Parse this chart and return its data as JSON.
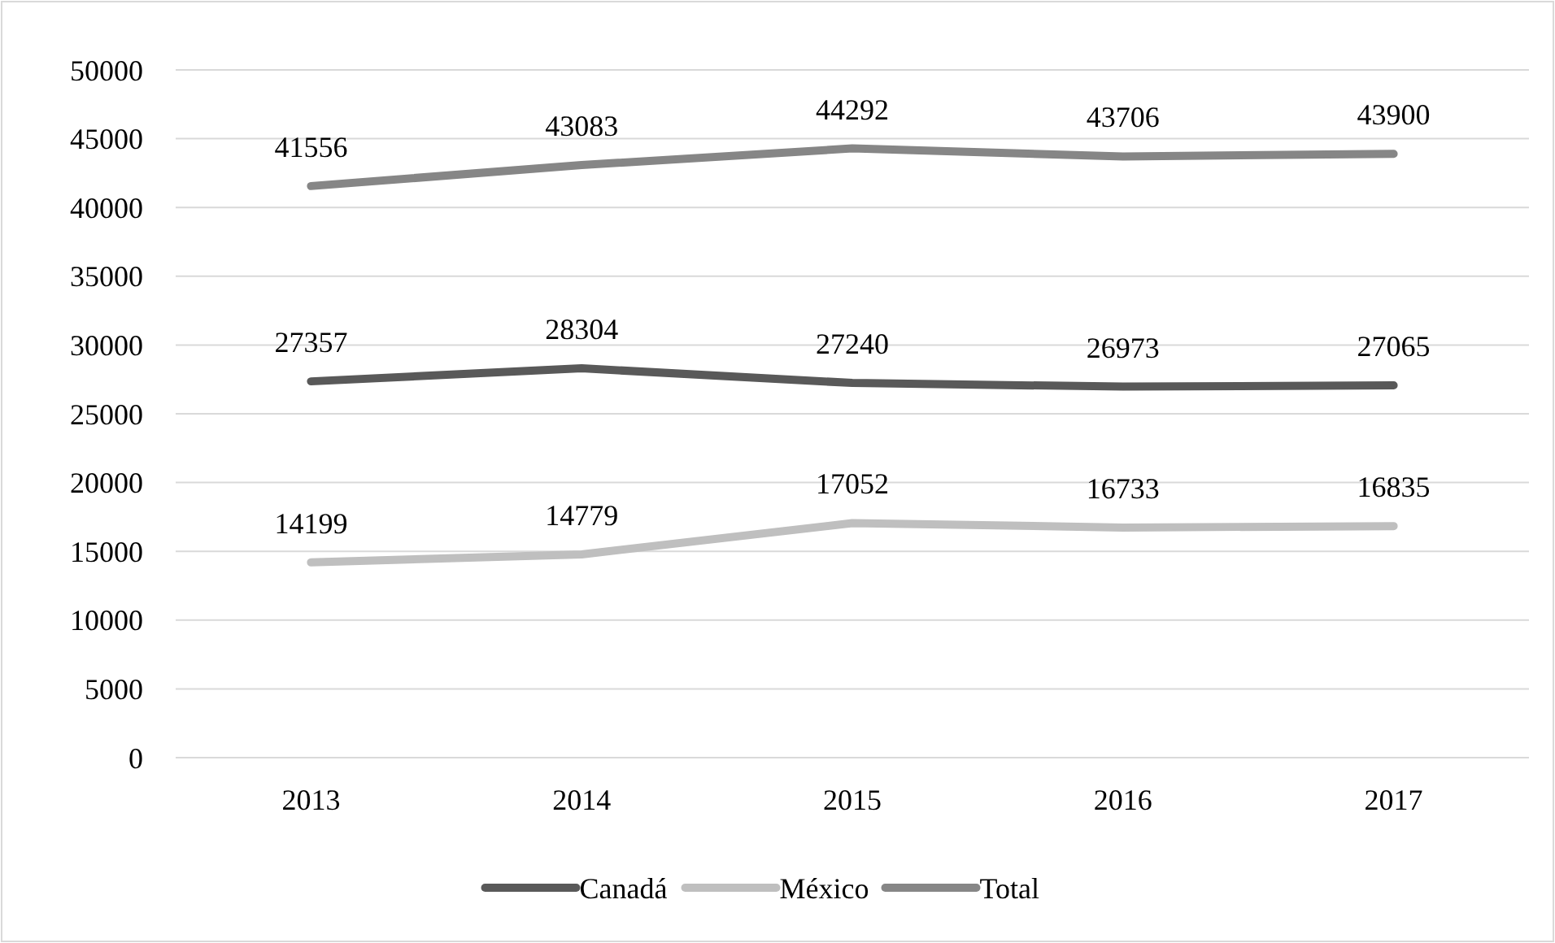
{
  "chart_data": {
    "type": "line",
    "categories": [
      "2013",
      "2014",
      "2015",
      "2016",
      "2017"
    ],
    "series": [
      {
        "name": "Canadá",
        "color": "#595959",
        "values": [
          27357,
          28304,
          27240,
          26973,
          27065
        ]
      },
      {
        "name": "México",
        "color": "#bfbfbf",
        "values": [
          14199,
          14779,
          17052,
          16733,
          16835
        ]
      },
      {
        "name": "Total",
        "color": "#868686",
        "values": [
          41556,
          43083,
          44292,
          43706,
          43900
        ]
      }
    ],
    "ylim": [
      0,
      50000
    ],
    "yticks": [
      0,
      5000,
      10000,
      15000,
      20000,
      25000,
      30000,
      35000,
      40000,
      45000,
      50000
    ],
    "grid": "y",
    "legend": "bottom",
    "data_labels": true,
    "marker": "none",
    "line_style": "solid"
  }
}
